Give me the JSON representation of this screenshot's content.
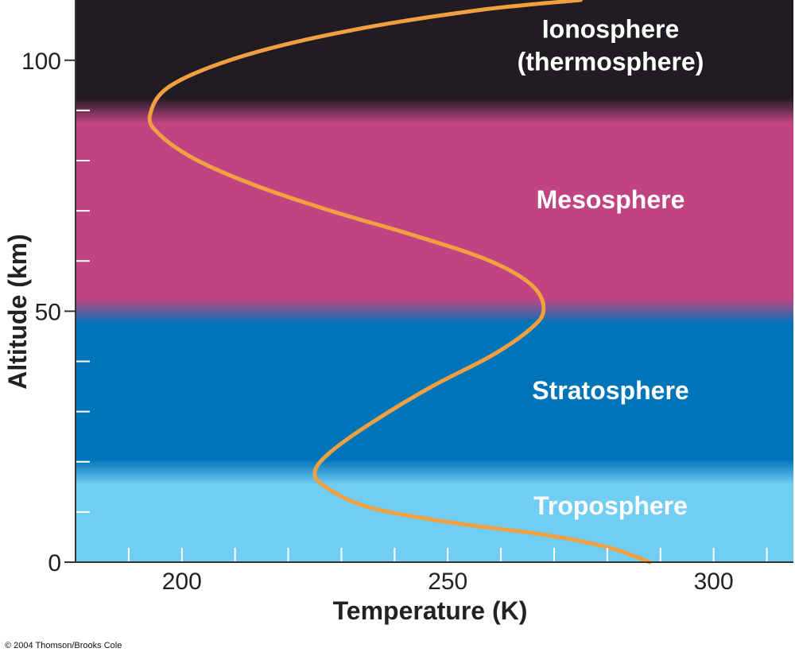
{
  "chart_data": {
    "type": "line",
    "xlabel": "Temperature (K)",
    "ylabel": "Altitude (km)",
    "xlim": [
      180,
      315
    ],
    "ylim": [
      0,
      112
    ],
    "x_ticks": [
      {
        "value": 200,
        "label": "200"
      },
      {
        "value": 250,
        "label": "250"
      },
      {
        "value": 300,
        "label": "300"
      }
    ],
    "x_minor_ticks": [
      190,
      200,
      210,
      220,
      230,
      240,
      250,
      260,
      270,
      280,
      290,
      300,
      310
    ],
    "y_ticks": [
      {
        "value": 0,
        "label": "0"
      },
      {
        "value": 50,
        "label": "50"
      },
      {
        "value": 100,
        "label": "100"
      }
    ],
    "y_minor_ticks": [
      10,
      20,
      30,
      40,
      60,
      70,
      80,
      90
    ],
    "series": [
      {
        "color": "#f0a040",
        "points": [
          [
            288,
            0
          ],
          [
            280,
            3
          ],
          [
            268,
            5.5
          ],
          [
            250,
            8
          ],
          [
            235,
            11
          ],
          [
            227,
            15
          ],
          [
            225,
            18
          ],
          [
            228,
            22
          ],
          [
            236,
            28
          ],
          [
            247,
            35
          ],
          [
            258,
            41
          ],
          [
            265,
            46
          ],
          [
            268,
            50
          ],
          [
            266,
            55
          ],
          [
            258,
            60
          ],
          [
            244,
            65
          ],
          [
            228,
            70
          ],
          [
            214,
            75
          ],
          [
            203,
            80
          ],
          [
            196,
            85
          ],
          [
            194,
            89
          ],
          [
            198,
            95
          ],
          [
            212,
            101
          ],
          [
            232,
            106
          ],
          [
            256,
            110
          ],
          [
            275,
            112
          ]
        ]
      }
    ],
    "layers": [
      {
        "label": "Troposphere",
        "bottom": 0,
        "top": 18,
        "color": "#72cdf2"
      },
      {
        "label": "Stratosphere",
        "bottom": 18,
        "top": 50,
        "color": "#0074b8"
      },
      {
        "label": "Mesosphere",
        "bottom": 50,
        "top": 90,
        "color": "#c04482"
      },
      {
        "label": "Ionosphere",
        "label_line2": "(thermosphere)",
        "bottom": 90,
        "top": 112,
        "color": "#201c22"
      }
    ],
    "grid": false
  },
  "credit": "© 2004 Thomson/Brooks Cole"
}
